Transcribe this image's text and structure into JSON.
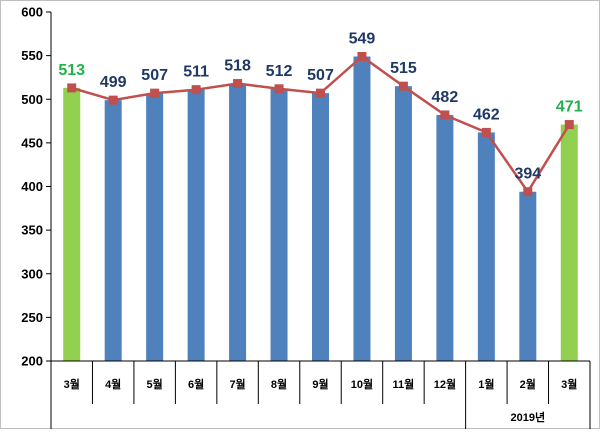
{
  "chart_data": {
    "type": "bar",
    "categories": [
      "3월",
      "4월",
      "5월",
      "6월",
      "7월",
      "8월",
      "9월",
      "10월",
      "11월",
      "12월",
      "1월",
      "2월",
      "3월"
    ],
    "values": [
      513,
      499,
      507,
      511,
      518,
      512,
      507,
      549,
      515,
      482,
      462,
      394,
      471
    ],
    "line_values": [
      513,
      499,
      507,
      511,
      518,
      512,
      507,
      549,
      515,
      482,
      462,
      394,
      471
    ],
    "highlight_indices": [
      0,
      12
    ],
    "ylim": [
      200,
      600
    ],
    "yticks": [
      200,
      250,
      300,
      350,
      400,
      450,
      500,
      550,
      600
    ],
    "group_label": "2019년",
    "group_range": [
      10,
      12
    ],
    "grid": false,
    "colors": {
      "bar": "#4f81bd",
      "bar_highlight": "#92d050",
      "line": "#c0504d",
      "label": "#1f3864",
      "label_highlight": "#22b14c"
    }
  }
}
